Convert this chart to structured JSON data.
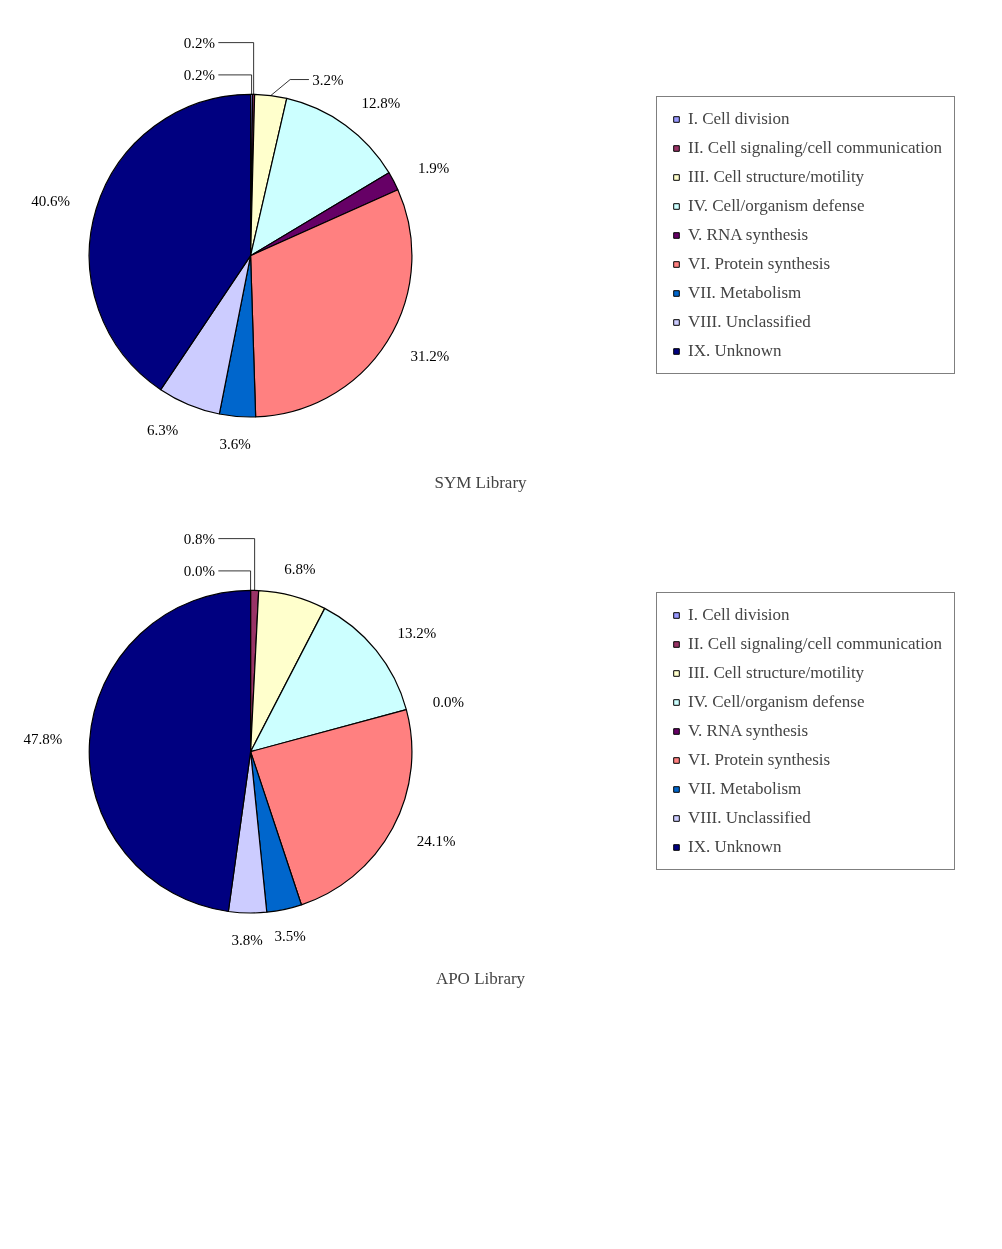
{
  "chart_data": [
    {
      "type": "pie",
      "title": "SYM Library",
      "categories": [
        "I. Cell division",
        "II. Cell signaling/cell communication",
        "III. Cell structure/motility",
        "IV. Cell/organism defense",
        "V. RNA synthesis",
        "VI. Protein synthesis",
        "VII. Metabolism",
        "VIII. Unclassified",
        "IX. Unknown"
      ],
      "values": [
        0.2,
        0.2,
        3.2,
        12.8,
        1.9,
        31.2,
        3.6,
        6.3,
        40.6
      ],
      "value_labels": [
        "0.2%",
        "0.2%",
        "3.2%",
        "12.8%",
        "1.9%",
        "31.2%",
        "3.6%",
        "6.3%",
        "40.6%"
      ],
      "colors": [
        "#9999ff",
        "#993366",
        "#ffffcc",
        "#ccffff",
        "#660066",
        "#ff8080",
        "#0066cc",
        "#ccccff",
        "#000080"
      ],
      "legend": "right"
    },
    {
      "type": "pie",
      "title": "APO Library",
      "categories": [
        "I. Cell division",
        "II. Cell signaling/cell communication",
        "III. Cell structure/motility",
        "IV. Cell/organism defense",
        "V. RNA synthesis",
        "VI. Protein synthesis",
        "VII. Metabolism",
        "VIII. Unclassified",
        "IX. Unknown"
      ],
      "values": [
        0.0,
        0.8,
        6.8,
        13.2,
        0.0,
        24.1,
        3.5,
        3.8,
        47.8
      ],
      "value_labels": [
        "0.0%",
        "0.8%",
        "6.8%",
        "13.2%",
        "0.0%",
        "24.1%",
        "3.5%",
        "3.8%",
        "47.8%"
      ],
      "colors": [
        "#9999ff",
        "#993366",
        "#ffffcc",
        "#ccffff",
        "#660066",
        "#ff8080",
        "#0066cc",
        "#ccccff",
        "#000080"
      ],
      "legend": "right"
    }
  ]
}
